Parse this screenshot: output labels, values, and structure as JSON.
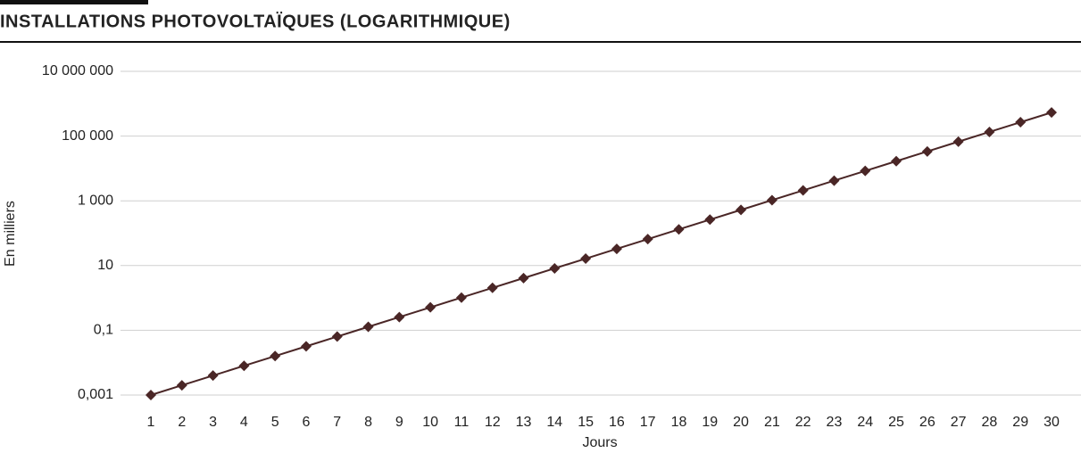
{
  "chart_data": {
    "type": "line",
    "title": "INSTALLATIONS PHOTOVOLTAÏQUES (LOGARITHMIQUE)",
    "y_label": "En milliers",
    "x_label": "Jours",
    "categories": [
      "1",
      "2",
      "3",
      "4",
      "5",
      "6",
      "7",
      "8",
      "9",
      "10",
      "11",
      "12",
      "13",
      "14",
      "15",
      "16",
      "17",
      "18",
      "19",
      "20",
      "21",
      "22",
      "23",
      "24",
      "25",
      "26",
      "27",
      "28",
      "29",
      "30"
    ],
    "values": [
      0.001,
      0.002,
      0.004,
      0.008,
      0.016,
      0.032,
      0.064,
      0.128,
      0.256,
      0.512,
      1.024,
      2.048,
      4.096,
      8.192,
      16.384,
      32.768,
      65.536,
      131.072,
      262.144,
      524.288,
      1048.576,
      2097.152,
      4194.304,
      8388.608,
      16777.216,
      33554.432,
      67108.864,
      134217.728,
      268435.456,
      536870.912
    ],
    "color": "#4a2626",
    "yscale": "log",
    "ylim": [
      0.001,
      10000000
    ],
    "yticks": [
      {
        "value": 0.001,
        "label": "0,001"
      },
      {
        "value": 0.1,
        "label": "0,1"
      },
      10,
      {
        "value": 1000,
        "label": "1 000"
      },
      {
        "value": 100000,
        "label": "100 000"
      },
      {
        "value": 10000000,
        "label": "10 000 000"
      }
    ],
    "grid": true
  }
}
